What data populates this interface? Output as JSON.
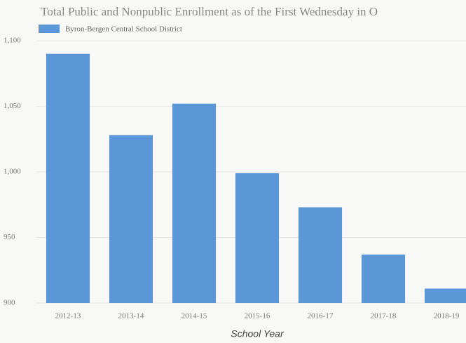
{
  "chart_data": {
    "type": "bar",
    "title": "Total Public and Nonpublic Enrollment as of the First Wednesday in O",
    "x_label": "School Year",
    "categories": [
      "2012-13",
      "2013-14",
      "2014-15",
      "2015-16",
      "2016-17",
      "2017-18",
      "2018-19"
    ],
    "series": [
      {
        "name": "Byron-Bergen Central School District",
        "color": "#5b97d6",
        "values": [
          1090,
          1028,
          1052,
          999,
          973,
          937,
          911
        ]
      }
    ],
    "ylim": [
      900,
      1100
    ],
    "yticks": [
      900,
      950,
      {
        "value": 1000,
        "label": "1,000"
      },
      {
        "value": 1050,
        "label": "1,050"
      },
      {
        "value": 1100,
        "label": "1,100"
      }
    ],
    "grid": true,
    "legend": "top-left"
  }
}
